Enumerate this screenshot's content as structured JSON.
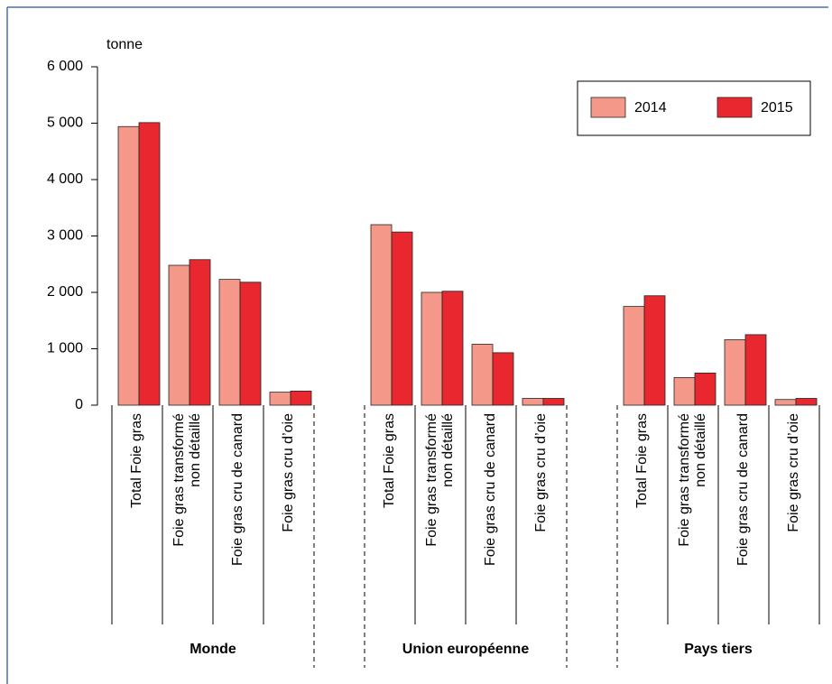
{
  "chart_data": {
    "type": "bar",
    "y_label": "tonne",
    "categories": [
      "Total Foie gras",
      "Foie gras transformé\nnon détaillé",
      "Foie gras cru de canard",
      "Foie gras cru d’oie",
      "Total Foie gras",
      "Foie gras transformé\nnon détaillé",
      "Foie gras cru de canard",
      "Foie gras cru d’oie",
      "Total Foie gras",
      "Foie gras transformé\nnon détaillé",
      "Foie gras cru de canard",
      "Foie gras cru d’oie"
    ],
    "groups": [
      "Monde",
      "Union européenne",
      "Pays tiers"
    ],
    "series": [
      {
        "name": "2014",
        "color": "#f4998a",
        "values": [
          4940,
          2480,
          2230,
          230,
          3200,
          2000,
          1080,
          120,
          1750,
          490,
          1160,
          100
        ]
      },
      {
        "name": "2015",
        "color": "#e8282e",
        "values": [
          5010,
          2580,
          2180,
          250,
          3070,
          2020,
          930,
          120,
          1940,
          570,
          1250,
          120
        ]
      }
    ],
    "ylim": [
      0,
      6000
    ],
    "yticks": [
      0,
      {
        "value": 1000,
        "label": "1 000"
      },
      {
        "value": 2000,
        "label": "2 000"
      },
      {
        "value": 3000,
        "label": "3 000"
      },
      {
        "value": 4000,
        "label": "4 000"
      },
      {
        "value": 5000,
        "label": "5 000"
      },
      {
        "value": 6000,
        "label": "6 000"
      }
    ],
    "legend": "top-right"
  }
}
